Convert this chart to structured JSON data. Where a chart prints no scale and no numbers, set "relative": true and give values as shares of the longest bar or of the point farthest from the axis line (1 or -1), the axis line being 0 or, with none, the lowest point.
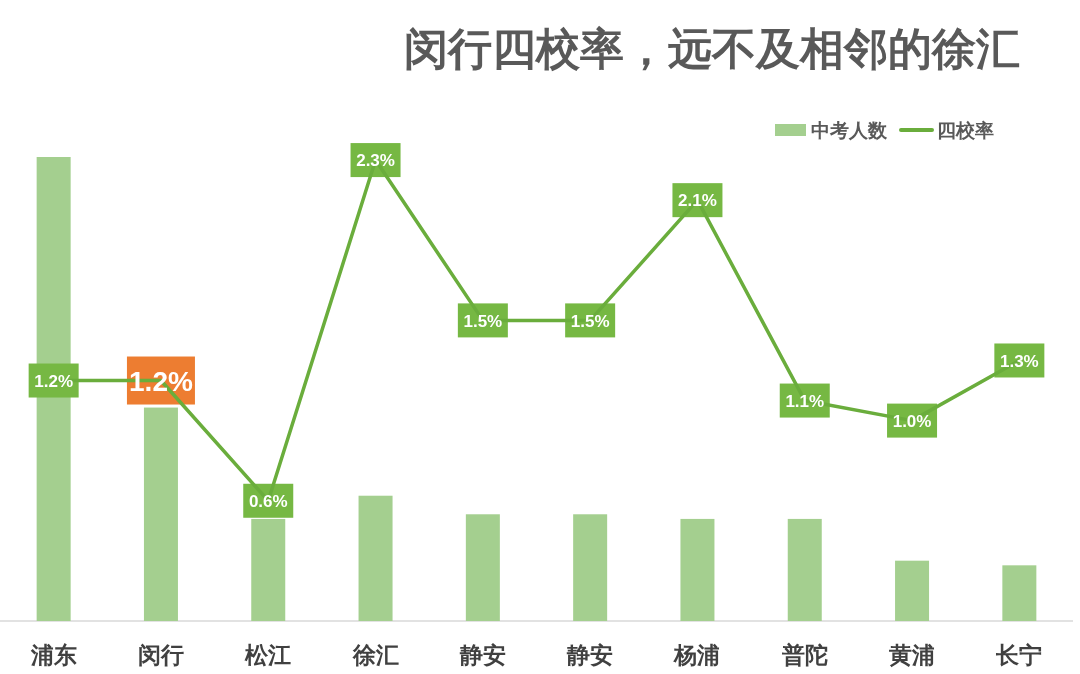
{
  "chart_data": [
    {
      "type": "bar",
      "title": "闵行四校率，远不及相邻的徐汇",
      "relative": true,
      "legend": "top right",
      "categories": [
        "浦东",
        "闵行",
        "松江",
        "徐汇",
        "静安",
        "静安",
        "杨浦",
        "普陀",
        "黄浦",
        "长宁"
      ],
      "series": [
        {
          "name": "中考人数",
          "color": "#a4cf8f",
          "values": [
            1,
            0.46,
            0.22,
            0.27,
            0.23,
            0.23,
            0.22,
            0.22,
            0.13,
            0.12
          ]
        }
      ]
    },
    {
      "type": "line",
      "legend": "top right",
      "tick_labels": false,
      "categories": [
        null,
        null,
        null,
        null,
        null,
        null,
        null,
        null,
        null,
        null
      ],
      "series": [
        {
          "name": "四校率",
          "color": "#6aad3c",
          "values": [
            1.2,
            1.2,
            0.6,
            2.3,
            1.5,
            1.5,
            2.1,
            1.1,
            1.0,
            1.3
          ],
          "value_labels": [
            "1.2%",
            "1.2%",
            "0.6%",
            "2.3%",
            "1.5%",
            "1.5%",
            "2.1%",
            "1.1%",
            "1.0%",
            "1.3%"
          ],
          "colors": [
            "#76b843",
            "#ed7d31",
            "#76b843",
            "#76b843",
            "#76b843",
            "#76b843",
            "#76b843",
            "#76b843",
            "#76b843",
            "#76b843"
          ]
        }
      ]
    }
  ]
}
